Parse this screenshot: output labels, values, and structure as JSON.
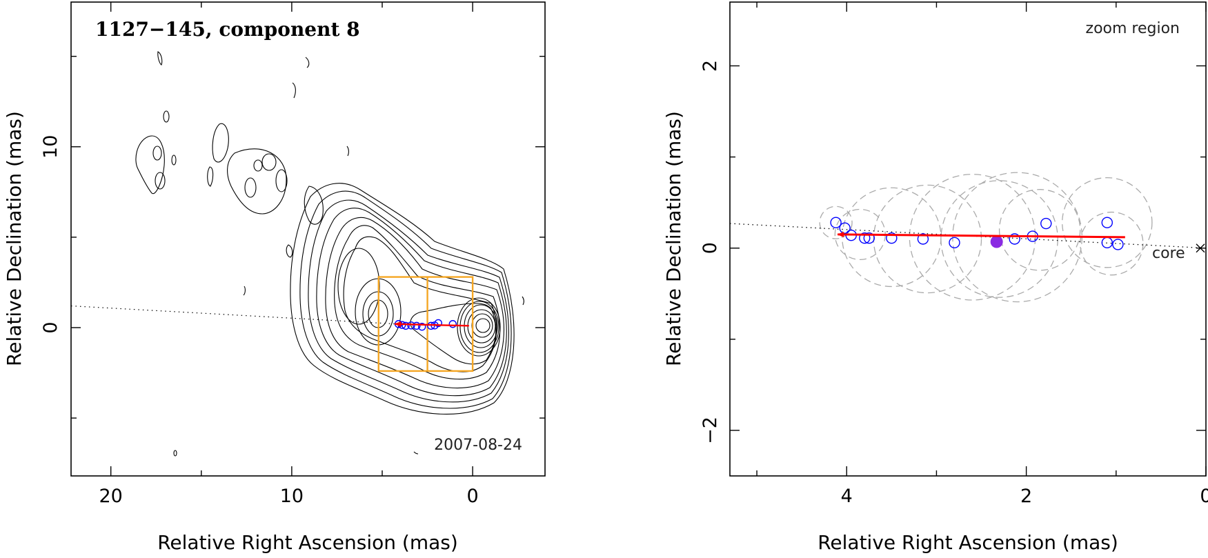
{
  "chart_data": [
    {
      "type": "contour",
      "panel": "left",
      "title": "1127−145, component 8",
      "date": "2007-08-24",
      "xlabel": "Relative Right Ascension (mas)",
      "ylabel": "Relative Declination (mas)",
      "xlim": [
        22.2,
        -4
      ],
      "ylim": [
        -8.2,
        18
      ],
      "xticks": [
        20,
        10,
        0
      ],
      "xtick_labels": [
        "20",
        "10",
        "0"
      ],
      "yticks": [
        10,
        0
      ],
      "ytick_labels": [
        "10",
        "0"
      ],
      "colors": {
        "contour": "#000000",
        "box": "#f5a623",
        "arrow": "#ff0000",
        "marker": "#0000ff"
      },
      "zoom_box": {
        "x": [
          5.2,
          0
        ],
        "y": [
          -2.4,
          2.8
        ],
        "divider_x": 2.5
      },
      "trajectory_line": {
        "from": [
          22.2,
          1.2
        ],
        "to": [
          4.2,
          0.2
        ]
      },
      "arrow": {
        "from": [
          0.2,
          0.1
        ],
        "to": [
          4.3,
          0.2
        ]
      },
      "component_points": [
        [
          4.1,
          0.2
        ],
        [
          3.9,
          0.15
        ],
        [
          3.7,
          0.1
        ],
        [
          3.4,
          0.12
        ],
        [
          3.1,
          0.1
        ],
        [
          2.8,
          0.05
        ],
        [
          2.3,
          0.1
        ],
        [
          2.1,
          0.12
        ],
        [
          1.9,
          0.25
        ],
        [
          1.1,
          0.2
        ]
      ]
    },
    {
      "type": "scatter",
      "panel": "right",
      "annotation": "zoom region",
      "core_label": "core",
      "xlabel": "Relative Right Ascension (mas)",
      "ylabel": "Relative Declination (mas)",
      "xlim": [
        5.3,
        0
      ],
      "ylim": [
        -2.5,
        2.7
      ],
      "xticks": [
        4,
        2,
        0
      ],
      "xtick_labels": [
        "4",
        "2",
        "0"
      ],
      "yticks": [
        2,
        0,
        -2
      ],
      "ytick_labels": [
        "2",
        "0",
        "−2"
      ],
      "colors": {
        "points": "#0000ff",
        "highlight": "#8a2be2",
        "arrow": "#ff0000",
        "circles": "#aaaaaa"
      },
      "points": [
        [
          4.12,
          0.28
        ],
        [
          4.02,
          0.22
        ],
        [
          3.95,
          0.14
        ],
        [
          3.8,
          0.11
        ],
        [
          3.75,
          0.11
        ],
        [
          3.5,
          0.11
        ],
        [
          3.15,
          0.1
        ],
        [
          2.8,
          0.06
        ],
        [
          2.13,
          0.1
        ],
        [
          1.93,
          0.13
        ],
        [
          1.78,
          0.27
        ],
        [
          1.1,
          0.28
        ],
        [
          1.1,
          0.06
        ],
        [
          0.98,
          0.04
        ]
      ],
      "highlight_point": [
        2.33,
        0.07
      ],
      "fitted_circles": [
        {
          "x": 4.12,
          "y": 0.28,
          "r": 0.18
        },
        {
          "x": 3.85,
          "y": 0.15,
          "r": 0.28
        },
        {
          "x": 3.5,
          "y": 0.12,
          "r": 0.55
        },
        {
          "x": 3.1,
          "y": 0.1,
          "r": 0.6
        },
        {
          "x": 2.6,
          "y": 0.12,
          "r": 0.7
        },
        {
          "x": 2.3,
          "y": 0.1,
          "r": 0.65
        },
        {
          "x": 2.1,
          "y": 0.12,
          "r": 0.72
        },
        {
          "x": 1.85,
          "y": 0.2,
          "r": 0.45
        },
        {
          "x": 1.1,
          "y": 0.28,
          "r": 0.5
        },
        {
          "x": 1.05,
          "y": 0.05,
          "r": 0.35
        }
      ],
      "arrow": {
        "from": [
          0.9,
          0.12
        ],
        "to": [
          4.1,
          0.15
        ]
      },
      "trajectory_line": {
        "from": [
          5.3,
          0.27
        ],
        "to": [
          0,
          0
        ]
      }
    }
  ]
}
